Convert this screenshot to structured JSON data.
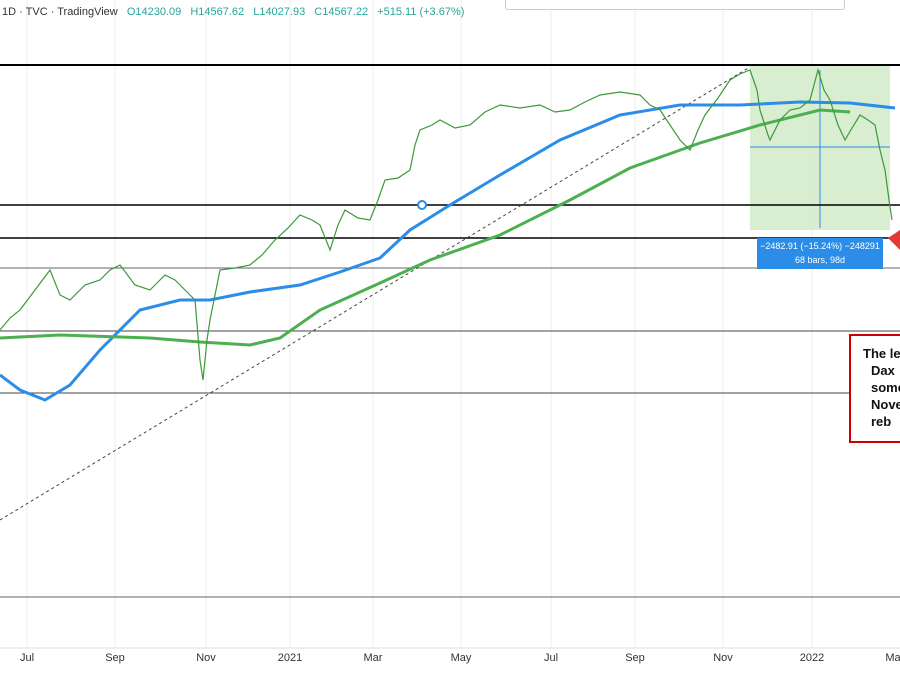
{
  "header": {
    "symbol": "1D · TVC · TradingView",
    "ohlc": [
      "O14230.09",
      "H14567.62",
      "L14027.93",
      "C14567.22",
      "+515.11 (+3.67%)"
    ]
  },
  "x_axis": [
    "Jul",
    "Sep",
    "Nov",
    "2021",
    "Mar",
    "May",
    "Jul",
    "Sep",
    "Nov",
    "2022",
    "Ma"
  ],
  "measure": {
    "change": "−2482.91 (−15.24%) −248291",
    "span": "68 bars, 98d"
  },
  "annotation": [
    "The le",
    "Dax",
    "some",
    "Nove",
    "reb"
  ]
}
